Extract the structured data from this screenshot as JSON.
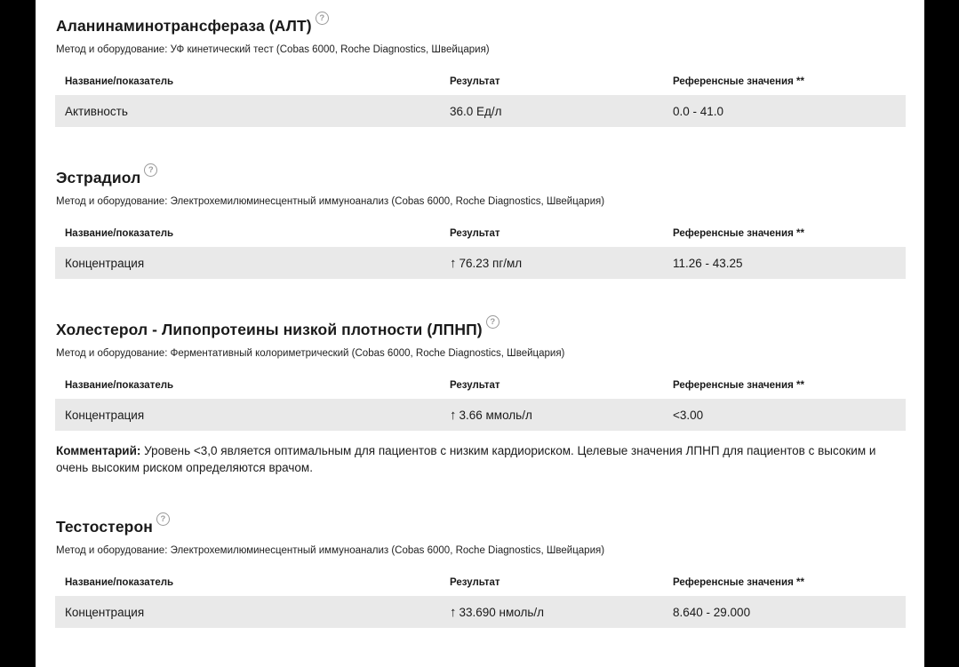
{
  "page": {
    "background": "#000000",
    "paper_color": "#ffffff",
    "row_color": "#e9e9e9",
    "text_color": "#1a1a1a",
    "help_icon_color": "#9a9a9a"
  },
  "help_icon_glyph": "?",
  "columns": {
    "name": "Название/показатель",
    "result": "Результат",
    "reference": "Референсные значения **"
  },
  "sections": [
    {
      "title": "Аланинаминотрансфераза (АЛТ)",
      "method": "Метод и оборудование: УФ кинетический тест (Cobas 6000, Roche Diagnostics, Швейцария)",
      "rows": [
        {
          "name": "Активность",
          "arrow": "",
          "result": "36.0 Ед/л",
          "reference": "0.0 - 41.0"
        }
      ]
    },
    {
      "title": "Эстрадиол",
      "method": "Метод и оборудование: Электрохемилюминесцентный иммуноанализ (Cobas 6000, Roche Diagnostics, Швейцария)",
      "rows": [
        {
          "name": "Концентрация",
          "arrow": "↑",
          "result": "76.23 пг/мл",
          "reference": "11.26 - 43.25"
        }
      ]
    },
    {
      "title": "Холестерол - Липопротеины низкой плотности (ЛПНП)",
      "method": "Метод и оборудование: Ферментативный колориметрический (Cobas 6000, Roche Diagnostics, Швейцария)",
      "rows": [
        {
          "name": "Концентрация",
          "arrow": "↑",
          "result": "3.66 ммоль/л",
          "reference": "<3.00"
        }
      ],
      "comment_label": "Комментарий:",
      "comment_text": " Уровень <3,0 является оптимальным для пациентов с низким кардиориском. Целевые значения ЛПНП для пациентов с высоким и очень высоким риском определяются врачом."
    },
    {
      "title": "Тестостерон",
      "method": "Метод и оборудование: Электрохемилюминесцентный иммуноанализ (Cobas 6000, Roche Diagnostics, Швейцария)",
      "rows": [
        {
          "name": "Концентрация",
          "arrow": "↑",
          "result": "33.690 нмоль/л",
          "reference": "8.640 - 29.000"
        }
      ]
    }
  ]
}
